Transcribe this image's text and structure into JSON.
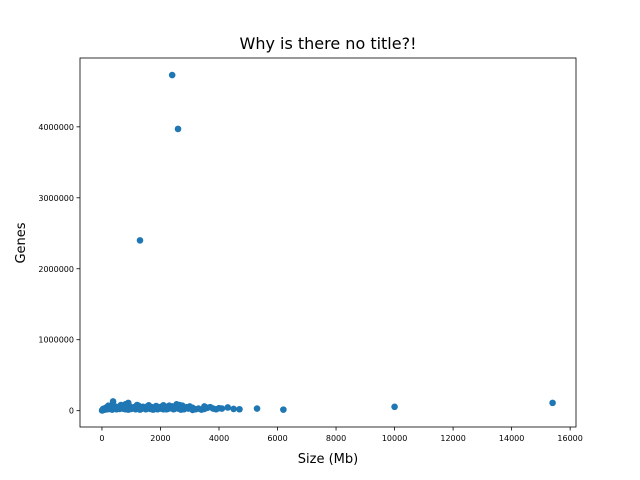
{
  "chart_data": {
    "type": "scatter",
    "title": "Why is there no title?!",
    "xlabel": "Size (Mb)",
    "ylabel": "Genes",
    "xlim": [
      -750,
      16200
    ],
    "ylim": [
      -230000,
      4970000
    ],
    "xticks": [
      0,
      2000,
      4000,
      6000,
      8000,
      10000,
      12000,
      14000,
      16000
    ],
    "xtick_labels": [
      "0",
      "2000",
      "4000",
      "6000",
      "8000",
      "10000",
      "12000",
      "14000",
      "16000"
    ],
    "yticks": [
      0,
      1000000,
      2000000,
      3000000,
      4000000
    ],
    "ytick_labels": [
      "0",
      "1000000",
      "2000000",
      "3000000",
      "4000000"
    ],
    "grid": false,
    "marker_color": "#1f77b4",
    "points": [
      [
        2400,
        4730000
      ],
      [
        2600,
        3970000
      ],
      [
        1300,
        2400000
      ],
      [
        15400,
        110000
      ],
      [
        10000,
        55000
      ],
      [
        6200,
        15000
      ],
      [
        5300,
        30000
      ],
      [
        4700,
        20000
      ],
      [
        4500,
        25000
      ],
      [
        4300,
        45000
      ],
      [
        4100,
        30000
      ],
      [
        4000,
        35000
      ],
      [
        3900,
        20000
      ],
      [
        3800,
        30000
      ],
      [
        3700,
        50000
      ],
      [
        3600,
        40000
      ],
      [
        3500,
        25000
      ],
      [
        3400,
        15000
      ],
      [
        3300,
        30000
      ],
      [
        3200,
        20000
      ],
      [
        3100,
        40000
      ],
      [
        3000,
        60000
      ],
      [
        2950,
        30000
      ],
      [
        2900,
        50000
      ],
      [
        2800,
        20000
      ],
      [
        2750,
        70000
      ],
      [
        2700,
        40000
      ],
      [
        2650,
        80000
      ],
      [
        2600,
        30000
      ],
      [
        2550,
        90000
      ],
      [
        2500,
        50000
      ],
      [
        2450,
        20000
      ],
      [
        2400,
        60000
      ],
      [
        2350,
        35000
      ],
      [
        2300,
        70000
      ],
      [
        2250,
        25000
      ],
      [
        2200,
        55000
      ],
      [
        2150,
        40000
      ],
      [
        2100,
        20000
      ],
      [
        2050,
        60000
      ],
      [
        2000,
        30000
      ],
      [
        1950,
        45000
      ],
      [
        1900,
        20000
      ],
      [
        1850,
        65000
      ],
      [
        1800,
        35000
      ],
      [
        1750,
        15000
      ],
      [
        1700,
        50000
      ],
      [
        1650,
        25000
      ],
      [
        1600,
        40000
      ],
      [
        1550,
        60000
      ],
      [
        1500,
        20000
      ],
      [
        1450,
        35000
      ],
      [
        1400,
        55000
      ],
      [
        1350,
        25000
      ],
      [
        1300,
        45000
      ],
      [
        1250,
        70000
      ],
      [
        1200,
        30000
      ],
      [
        1150,
        20000
      ],
      [
        1100,
        50000
      ],
      [
        1050,
        35000
      ],
      [
        1000,
        25000
      ],
      [
        950,
        60000
      ],
      [
        900,
        110000
      ],
      [
        850,
        40000
      ],
      [
        800,
        20000
      ],
      [
        750,
        55000
      ],
      [
        700,
        30000
      ],
      [
        650,
        80000
      ],
      [
        600,
        25000
      ],
      [
        550,
        45000
      ],
      [
        500,
        20000
      ],
      [
        450,
        60000
      ],
      [
        400,
        30000
      ],
      [
        380,
        130000
      ],
      [
        350,
        15000
      ],
      [
        300,
        50000
      ],
      [
        250,
        25000
      ],
      [
        220,
        70000
      ],
      [
        200,
        35000
      ],
      [
        180,
        20000
      ],
      [
        150,
        45000
      ],
      [
        120,
        25000
      ],
      [
        100,
        15000
      ],
      [
        80,
        30000
      ],
      [
        60,
        20000
      ],
      [
        50,
        10000
      ],
      [
        40,
        25000
      ],
      [
        30,
        15000
      ],
      [
        20,
        8000
      ],
      [
        10,
        5000
      ],
      [
        5,
        3000
      ],
      [
        600,
        60000
      ],
      [
        800,
        90000
      ],
      [
        1200,
        80000
      ],
      [
        1600,
        75000
      ],
      [
        2200,
        20000
      ],
      [
        2700,
        15000
      ],
      [
        3100,
        10000
      ],
      [
        3500,
        60000
      ],
      [
        900,
        15000
      ],
      [
        1300,
        15000
      ],
      [
        1900,
        55000
      ],
      [
        2100,
        75000
      ]
    ]
  }
}
